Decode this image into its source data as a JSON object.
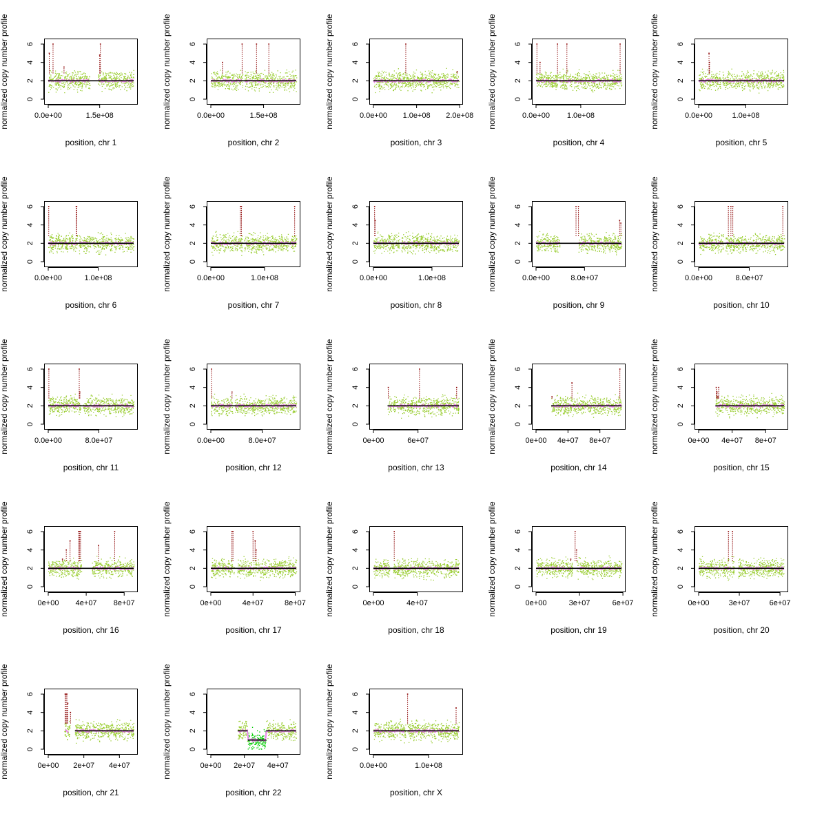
{
  "figure": {
    "ylabel": "normalized copy number profile",
    "ylim": [
      0,
      6
    ],
    "yticks": [
      0,
      2,
      4,
      6
    ],
    "colors": {
      "raw_points": "#9acd32",
      "segment_line": "#000000",
      "smoothed": "#ee82ee",
      "gain": "#8b0000",
      "loss": "#00cd00"
    }
  },
  "chart_data": [
    {
      "type": "scatter",
      "title": "",
      "xlabel": "position, chr 1",
      "xlim": [
        0,
        249000000
      ],
      "xticks": [
        {
          "v": 0,
          "label": "0.0e+00"
        },
        {
          "v": 150000000,
          "label": "1.5e+08"
        }
      ],
      "gaps": [
        [
          121000000,
          144000000
        ]
      ],
      "ylim": [
        0,
        6
      ],
      "level": 2,
      "segments": [
        {
          "x": [
            0,
            249000000
          ],
          "y": 2
        }
      ],
      "spikes": [
        [
          3000000,
          5
        ],
        [
          14000000,
          6
        ],
        [
          46000000,
          3.5
        ],
        [
          150000000,
          4.8
        ],
        [
          152000000,
          6
        ]
      ]
    },
    {
      "type": "scatter",
      "title": "",
      "xlabel": "position, chr 2",
      "xlim": [
        0,
        243000000
      ],
      "xticks": [
        {
          "v": 0,
          "label": "0.0e+00"
        },
        {
          "v": 150000000,
          "label": "1.5e+08"
        }
      ],
      "gaps": [
        [
          90000000,
          96000000
        ]
      ],
      "ylim": [
        0,
        6
      ],
      "level": 2,
      "segments": [
        {
          "x": [
            0,
            243000000
          ],
          "y": 2
        }
      ],
      "spikes": [
        [
          33000000,
          4
        ],
        [
          89000000,
          6
        ],
        [
          130000000,
          6
        ],
        [
          165000000,
          6
        ]
      ]
    },
    {
      "type": "scatter",
      "title": "",
      "xlabel": "position, chr 3",
      "xlim": [
        0,
        198000000
      ],
      "xticks": [
        {
          "v": 0,
          "label": "0.0e+00"
        },
        {
          "v": 100000000,
          "label": "1.0e+08"
        },
        {
          "v": 200000000,
          "label": "2.0e+08"
        }
      ],
      "gaps": [],
      "ylim": [
        0,
        6
      ],
      "level": 2,
      "segments": [
        {
          "x": [
            0,
            198000000
          ],
          "y": 2
        }
      ],
      "spikes": [
        [
          75000000,
          6
        ],
        [
          194000000,
          3
        ]
      ]
    },
    {
      "type": "scatter",
      "title": "",
      "xlabel": "position, chr 4",
      "xlim": [
        0,
        191000000
      ],
      "xticks": [
        {
          "v": 0,
          "label": "0.0e+00"
        },
        {
          "v": 100000000,
          "label": "1.0e+08"
        }
      ],
      "gaps": [
        [
          49000000,
          52000000
        ]
      ],
      "ylim": [
        0,
        6
      ],
      "level": 2,
      "segments": [
        {
          "x": [
            0,
            191000000
          ],
          "y": 2
        }
      ],
      "spikes": [
        [
          2000000,
          6
        ],
        [
          9000000,
          4
        ],
        [
          48000000,
          6
        ],
        [
          69000000,
          6
        ],
        [
          188000000,
          6
        ]
      ]
    },
    {
      "type": "scatter",
      "title": "",
      "xlabel": "position, chr 5",
      "xlim": [
        0,
        181000000
      ],
      "xticks": [
        {
          "v": 0,
          "label": "0.0e+00"
        },
        {
          "v": 100000000,
          "label": "1.0e+08"
        }
      ],
      "gaps": [
        [
          47000000,
          50000000
        ]
      ],
      "ylim": [
        0,
        6
      ],
      "level": 2,
      "segments": [
        {
          "x": [
            0,
            181000000
          ],
          "y": 2
        }
      ],
      "spikes": [
        [
          22000000,
          5
        ],
        [
          23000000,
          4
        ]
      ]
    },
    {
      "type": "scatter",
      "title": "",
      "xlabel": "position, chr 6",
      "xlim": [
        0,
        171000000
      ],
      "xticks": [
        {
          "v": 0,
          "label": "0.0e+00"
        },
        {
          "v": 100000000,
          "label": "1.0e+08"
        }
      ],
      "gaps": [
        [
          58000000,
          61000000
        ]
      ],
      "ylim": [
        0,
        6
      ],
      "level": 2,
      "segments": [
        {
          "x": [
            0,
            171000000
          ],
          "y": 2
        }
      ],
      "spikes": [
        [
          1000000,
          6
        ],
        [
          56000000,
          6
        ],
        [
          57000000,
          6
        ]
      ]
    },
    {
      "type": "scatter",
      "title": "",
      "xlabel": "position, chr 7",
      "xlim": [
        0,
        159000000
      ],
      "xticks": [
        {
          "v": 0,
          "label": "0.0e+00"
        },
        {
          "v": 100000000,
          "label": "1.0e+08"
        }
      ],
      "gaps": [
        [
          58000000,
          62000000
        ]
      ],
      "ylim": [
        0,
        6
      ],
      "level": 2,
      "segments": [
        {
          "x": [
            0,
            159000000
          ],
          "y": 2
        }
      ],
      "spikes": [
        [
          55000000,
          6
        ],
        [
          57000000,
          6
        ],
        [
          156000000,
          6
        ]
      ]
    },
    {
      "type": "scatter",
      "title": "",
      "xlabel": "position, chr 8",
      "xlim": [
        0,
        146000000
      ],
      "xticks": [
        {
          "v": 0,
          "label": "0.0e+00"
        },
        {
          "v": 100000000,
          "label": "1.0e+08"
        }
      ],
      "gaps": [
        [
          44000000,
          47000000
        ]
      ],
      "ylim": [
        0,
        6
      ],
      "level": 2,
      "segments": [
        {
          "x": [
            0,
            146000000
          ],
          "y": 2
        }
      ],
      "spikes": [
        [
          2000000,
          6
        ],
        [
          3000000,
          4.5
        ]
      ]
    },
    {
      "type": "scatter",
      "title": "",
      "xlabel": "position, chr 9",
      "xlim": [
        0,
        141000000
      ],
      "xticks": [
        {
          "v": 0,
          "label": "0.0e+00"
        },
        {
          "v": 80000000,
          "label": "8.0e+07"
        }
      ],
      "gaps": [
        [
          39000000,
          70000000
        ]
      ],
      "ylim": [
        0,
        6
      ],
      "level": 2,
      "segments": [
        {
          "x": [
            0,
            141000000
          ],
          "y": 2
        }
      ],
      "spikes": [
        [
          66000000,
          6
        ],
        [
          70000000,
          6
        ],
        [
          138000000,
          4.5
        ],
        [
          140000000,
          4.2
        ]
      ]
    },
    {
      "type": "scatter",
      "title": "",
      "xlabel": "position, chr 10",
      "xlim": [
        0,
        135000000
      ],
      "xticks": [
        {
          "v": 0,
          "label": "0.0e+00"
        },
        {
          "v": 80000000,
          "label": "8.0e+07"
        }
      ],
      "gaps": [
        [
          39000000,
          42000000
        ]
      ],
      "ylim": [
        0,
        6
      ],
      "level": 2,
      "segments": [
        {
          "x": [
            0,
            135000000
          ],
          "y": 2
        }
      ],
      "spikes": [
        [
          47000000,
          6
        ],
        [
          51000000,
          6
        ],
        [
          54000000,
          6
        ],
        [
          133000000,
          6
        ]
      ]
    },
    {
      "type": "scatter",
      "title": "",
      "xlabel": "position, chr 11",
      "xlim": [
        0,
        135000000
      ],
      "xticks": [
        {
          "v": 0,
          "label": "0.0e+00"
        },
        {
          "v": 80000000,
          "label": "8.0e+07"
        }
      ],
      "gaps": [
        [
          51000000,
          55000000
        ]
      ],
      "ylim": [
        0,
        6
      ],
      "level": 2,
      "segments": [
        {
          "x": [
            0,
            135000000
          ],
          "y": 2
        }
      ],
      "spikes": [
        [
          1000000,
          6
        ],
        [
          49000000,
          6
        ],
        [
          50000000,
          3.5
        ]
      ]
    },
    {
      "type": "scatter",
      "title": "",
      "xlabel": "position, chr 12",
      "xlim": [
        0,
        133000000
      ],
      "xticks": [
        {
          "v": 0,
          "label": "0.0e+00"
        },
        {
          "v": 80000000,
          "label": "8.0e+07"
        }
      ],
      "gaps": [
        [
          34000000,
          37000000
        ]
      ],
      "ylim": [
        0,
        6
      ],
      "level": 2,
      "segments": [
        {
          "x": [
            0,
            133000000
          ],
          "y": 2
        }
      ],
      "spikes": [
        [
          1000000,
          6
        ],
        [
          33000000,
          3.5
        ]
      ]
    },
    {
      "type": "scatter",
      "title": "",
      "xlabel": "position, chr 13",
      "xlim": [
        0,
        115000000
      ],
      "xticks": [
        {
          "v": 0,
          "label": "0e+00"
        },
        {
          "v": 60000000,
          "label": "6e+07"
        }
      ],
      "gaps": [
        [
          0,
          19000000
        ]
      ],
      "ylim": [
        0,
        6
      ],
      "level": 2,
      "segments": [
        {
          "x": [
            19000000,
            115000000
          ],
          "y": 2
        }
      ],
      "spikes": [
        [
          20000000,
          4
        ],
        [
          62000000,
          6
        ],
        [
          112000000,
          4
        ]
      ]
    },
    {
      "type": "scatter",
      "title": "",
      "xlabel": "position, chr 14",
      "xlim": [
        0,
        107000000
      ],
      "xticks": [
        {
          "v": 0,
          "label": "0e+00"
        },
        {
          "v": 40000000,
          "label": "4e+07"
        },
        {
          "v": 80000000,
          "label": "8e+07"
        }
      ],
      "gaps": [
        [
          0,
          19000000
        ]
      ],
      "ylim": [
        0,
        6
      ],
      "level": 2,
      "segments": [
        {
          "x": [
            19000000,
            107000000
          ],
          "y": 2
        }
      ],
      "spikes": [
        [
          20000000,
          3
        ],
        [
          45000000,
          4.5
        ],
        [
          105000000,
          6
        ]
      ]
    },
    {
      "type": "scatter",
      "title": "",
      "xlabel": "position, chr 15",
      "xlim": [
        0,
        102000000
      ],
      "xticks": [
        {
          "v": 0,
          "label": "0e+00"
        },
        {
          "v": 40000000,
          "label": "4e+07"
        },
        {
          "v": 80000000,
          "label": "8e+07"
        }
      ],
      "gaps": [
        [
          0,
          20000000
        ]
      ],
      "ylim": [
        0,
        6
      ],
      "level": 2,
      "segments": [
        {
          "x": [
            20000000,
            102000000
          ],
          "y": 2
        }
      ],
      "spikes": [
        [
          21000000,
          4
        ],
        [
          22000000,
          3.5
        ],
        [
          23000000,
          3
        ],
        [
          24000000,
          4
        ]
      ]
    },
    {
      "type": "scatter",
      "title": "",
      "xlabel": "position, chr 16",
      "xlim": [
        0,
        90000000
      ],
      "xticks": [
        {
          "v": 0,
          "label": "0e+00"
        },
        {
          "v": 40000000,
          "label": "4e+07"
        },
        {
          "v": 80000000,
          "label": "8e+07"
        }
      ],
      "gaps": [
        [
          35000000,
          46000000
        ]
      ],
      "ylim": [
        0,
        6
      ],
      "level": 2,
      "segments": [
        {
          "x": [
            0,
            90000000
          ],
          "y": 2
        }
      ],
      "spikes": [
        [
          15000000,
          3
        ],
        [
          19000000,
          4
        ],
        [
          23000000,
          5
        ],
        [
          32000000,
          6
        ],
        [
          33000000,
          6
        ],
        [
          34000000,
          6
        ],
        [
          53000000,
          4.5
        ],
        [
          70000000,
          6
        ]
      ]
    },
    {
      "type": "scatter",
      "title": "",
      "xlabel": "position, chr 17",
      "xlim": [
        0,
        81000000
      ],
      "xticks": [
        {
          "v": 0,
          "label": "0e+00"
        },
        {
          "v": 40000000,
          "label": "4e+07"
        },
        {
          "v": 80000000,
          "label": "8e+07"
        }
      ],
      "gaps": [
        [
          22000000,
          25000000
        ]
      ],
      "ylim": [
        0,
        6
      ],
      "level": 2,
      "segments": [
        {
          "x": [
            0,
            81000000
          ],
          "y": 2
        }
      ],
      "spikes": [
        [
          20000000,
          6
        ],
        [
          21000000,
          6
        ],
        [
          40000000,
          6
        ],
        [
          42000000,
          5
        ],
        [
          43000000,
          4
        ]
      ]
    },
    {
      "type": "scatter",
      "title": "",
      "xlabel": "position, chr 18",
      "xlim": [
        0,
        78000000
      ],
      "xticks": [
        {
          "v": 0,
          "label": "0e+00"
        },
        {
          "v": 40000000,
          "label": "4e+07"
        }
      ],
      "gaps": [
        [
          15000000,
          18000000
        ]
      ],
      "ylim": [
        0,
        6
      ],
      "level": 2,
      "segments": [
        {
          "x": [
            0,
            78000000
          ],
          "y": 2
        }
      ],
      "spikes": [
        [
          19000000,
          6
        ]
      ]
    },
    {
      "type": "scatter",
      "title": "",
      "xlabel": "position, chr 19",
      "xlim": [
        0,
        59000000
      ],
      "xticks": [
        {
          "v": 0,
          "label": "0e+00"
        },
        {
          "v": 30000000,
          "label": "3e+07"
        },
        {
          "v": 60000000,
          "label": "6e+07"
        }
      ],
      "gaps": [
        [
          25000000,
          28000000
        ]
      ],
      "ylim": [
        0,
        6
      ],
      "level": 2,
      "segments": [
        {
          "x": [
            0,
            59000000
          ],
          "y": 2
        }
      ],
      "spikes": [
        [
          24000000,
          3
        ],
        [
          27000000,
          6
        ],
        [
          28000000,
          4
        ]
      ]
    },
    {
      "type": "scatter",
      "title": "",
      "xlabel": "position, chr 20",
      "xlim": [
        0,
        63000000
      ],
      "xticks": [
        {
          "v": 0,
          "label": "0e+00"
        },
        {
          "v": 30000000,
          "label": "3e+07"
        },
        {
          "v": 60000000,
          "label": "6e+07"
        }
      ],
      "gaps": [
        [
          26000000,
          29000000
        ]
      ],
      "ylim": [
        0,
        6
      ],
      "level": 2,
      "segments": [
        {
          "x": [
            0,
            63000000
          ],
          "y": 2
        }
      ],
      "spikes": [
        [
          22000000,
          6
        ],
        [
          25000000,
          6
        ]
      ]
    },
    {
      "type": "scatter",
      "title": "",
      "xlabel": "position, chr 21",
      "xlim": [
        0,
        48000000
      ],
      "xticks": [
        {
          "v": 0,
          "label": "0e+00"
        },
        {
          "v": 20000000,
          "label": "2e+07"
        },
        {
          "v": 40000000,
          "label": "4e+07"
        }
      ],
      "gaps": [
        [
          0,
          9000000
        ],
        [
          12000000,
          15000000
        ]
      ],
      "ylim": [
        0,
        6
      ],
      "level": 2,
      "segments": [
        {
          "x": [
            15000000,
            48000000
          ],
          "y": 2
        }
      ],
      "spikes": [
        [
          9500000,
          6
        ],
        [
          10000000,
          6
        ],
        [
          10500000,
          6
        ],
        [
          11000000,
          5
        ],
        [
          12500000,
          4
        ]
      ]
    },
    {
      "type": "scatter",
      "title": "",
      "xlabel": "position, chr 22",
      "xlim": [
        0,
        51000000
      ],
      "xticks": [
        {
          "v": 0,
          "label": "0e+00"
        },
        {
          "v": 20000000,
          "label": "2e+07"
        },
        {
          "v": 40000000,
          "label": "4e+07"
        }
      ],
      "gaps": [
        [
          0,
          16000000
        ]
      ],
      "ylim": [
        0,
        6
      ],
      "level": 2,
      "segments": [
        {
          "x": [
            16000000,
            22000000
          ],
          "y": 2
        },
        {
          "x": [
            22000000,
            33000000
          ],
          "y": 1
        },
        {
          "x": [
            33000000,
            51000000
          ],
          "y": 2
        }
      ],
      "spikes": []
    },
    {
      "type": "scatter",
      "title": "",
      "xlabel": "position, chr X",
      "xlim": [
        0,
        155000000
      ],
      "xticks": [
        {
          "v": 0,
          "label": "0.0e+00"
        },
        {
          "v": 100000000,
          "label": "1.0e+08"
        }
      ],
      "gaps": [
        [
          58000000,
          61000000
        ]
      ],
      "ylim": [
        0,
        6
      ],
      "level": 2,
      "segments": [
        {
          "x": [
            0,
            155000000
          ],
          "y": 2
        }
      ],
      "spikes": [
        [
          62000000,
          6
        ],
        [
          150000000,
          4.5
        ]
      ]
    }
  ]
}
